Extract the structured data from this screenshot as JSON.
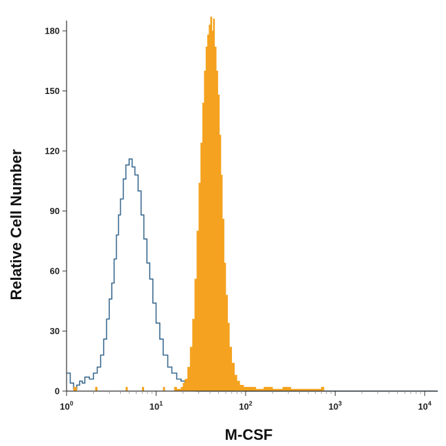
{
  "chart_data": {
    "type": "histogram",
    "xlabel": "M-CSF",
    "ylabel": "Relative Cell Number",
    "x_scale": "log",
    "xlim": [
      1,
      14000
    ],
    "ylim": [
      0,
      185
    ],
    "x_ticks": [
      1,
      10,
      100,
      1000,
      10000
    ],
    "x_tick_labels": [
      {
        "base": "10",
        "exp": "0"
      },
      {
        "base": "10",
        "exp": "1"
      },
      {
        "base": "10",
        "exp": "2"
      },
      {
        "base": "10",
        "exp": "3"
      },
      {
        "base": "10",
        "exp": "4"
      }
    ],
    "y_ticks": [
      0,
      30,
      60,
      90,
      120,
      150,
      180
    ],
    "y_tick_labels": [
      "0",
      "30",
      "60",
      "90",
      "120",
      "150",
      "180"
    ],
    "grid": false,
    "legend": "none",
    "series": [
      {
        "style": "outline",
        "color": "#3a6a8f",
        "points": [
          [
            1.0,
            9
          ],
          [
            1.1,
            4
          ],
          [
            1.2,
            1
          ],
          [
            1.3,
            3
          ],
          [
            1.4,
            5
          ],
          [
            1.5,
            4
          ],
          [
            1.6,
            7
          ],
          [
            1.8,
            6
          ],
          [
            2.0,
            9
          ],
          [
            2.2,
            12
          ],
          [
            2.4,
            18
          ],
          [
            2.6,
            26
          ],
          [
            2.8,
            36
          ],
          [
            3.0,
            46
          ],
          [
            3.2,
            54
          ],
          [
            3.4,
            66
          ],
          [
            3.6,
            78
          ],
          [
            3.8,
            88
          ],
          [
            4.0,
            96
          ],
          [
            4.3,
            106
          ],
          [
            4.6,
            113
          ],
          [
            5.0,
            116
          ],
          [
            5.4,
            112
          ],
          [
            5.8,
            108
          ],
          [
            6.3,
            100
          ],
          [
            6.8,
            88
          ],
          [
            7.3,
            76
          ],
          [
            7.9,
            64
          ],
          [
            8.5,
            56
          ],
          [
            9.2,
            44
          ],
          [
            10.0,
            34
          ],
          [
            11.0,
            26
          ],
          [
            12.0,
            18
          ],
          [
            13.5,
            12
          ],
          [
            15.0,
            9
          ],
          [
            17.0,
            6
          ],
          [
            19.0,
            5
          ],
          [
            21.0,
            3
          ],
          [
            24.0,
            1
          ],
          [
            28.0,
            0
          ],
          [
            14000,
            0
          ]
        ]
      },
      {
        "style": "filled",
        "color": "#f4a21f",
        "points": [
          [
            1.0,
            0
          ],
          [
            1.2,
            2
          ],
          [
            1.3,
            0
          ],
          [
            2.1,
            2
          ],
          [
            2.2,
            0
          ],
          [
            4.6,
            2
          ],
          [
            4.8,
            0
          ],
          [
            7.0,
            2
          ],
          [
            7.3,
            0
          ],
          [
            12.0,
            2
          ],
          [
            12.5,
            0
          ],
          [
            16.0,
            2
          ],
          [
            17.0,
            1
          ],
          [
            19.0,
            2
          ],
          [
            20.0,
            4
          ],
          [
            21.0,
            6
          ],
          [
            22.5,
            12
          ],
          [
            24.0,
            22
          ],
          [
            25.5,
            36
          ],
          [
            27.0,
            56
          ],
          [
            28.5,
            80
          ],
          [
            30.0,
            104
          ],
          [
            31.5,
            124
          ],
          [
            33.0,
            144
          ],
          [
            34.5,
            160
          ],
          [
            36.0,
            172
          ],
          [
            37.5,
            178
          ],
          [
            39.0,
            183
          ],
          [
            40.5,
            187
          ],
          [
            42.0,
            180
          ],
          [
            43.5,
            186
          ],
          [
            45.0,
            172
          ],
          [
            47.0,
            160
          ],
          [
            49.0,
            148
          ],
          [
            51.0,
            128
          ],
          [
            53.0,
            108
          ],
          [
            55.0,
            86
          ],
          [
            57.5,
            64
          ],
          [
            60.0,
            48
          ],
          [
            63.0,
            34
          ],
          [
            66.0,
            22
          ],
          [
            70.0,
            14
          ],
          [
            75.0,
            8
          ],
          [
            80.0,
            5
          ],
          [
            86.0,
            3
          ],
          [
            95.0,
            2
          ],
          [
            110.0,
            2
          ],
          [
            130.0,
            1
          ],
          [
            160.0,
            2
          ],
          [
            200.0,
            1
          ],
          [
            260.0,
            2
          ],
          [
            320.0,
            1
          ],
          [
            700.0,
            2
          ],
          [
            750.0,
            0
          ],
          [
            14000,
            0
          ]
        ]
      }
    ]
  }
}
